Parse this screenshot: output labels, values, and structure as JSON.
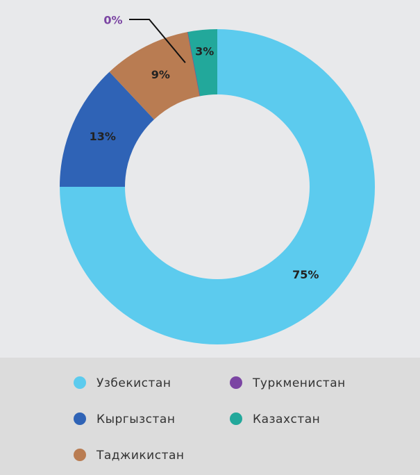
{
  "chart_data": {
    "type": "donut",
    "categories": [
      "Узбекистан",
      "Кыргызстан",
      "Таджикистан",
      "Туркменистан",
      "Казахстан"
    ],
    "values": [
      75,
      13,
      9,
      0,
      3
    ],
    "value_labels": [
      "75%",
      "13%",
      "9%",
      "0%",
      "3%"
    ],
    "colors": [
      "#5ccbee",
      "#2f63b6",
      "#b97c52",
      "#7b45a3",
      "#22a89b"
    ],
    "legend": "bottom"
  }
}
